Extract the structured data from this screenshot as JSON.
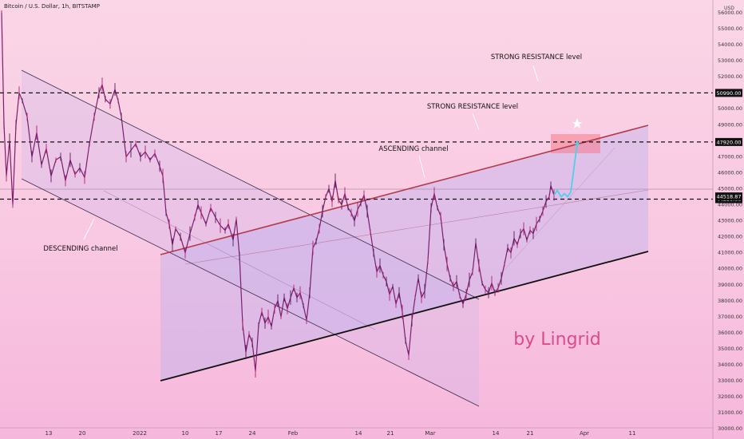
{
  "header": {
    "title": "Bitcoin / U.S. Dollar, 1h, BITSTAMP",
    "currency": "USD"
  },
  "chart_data": {
    "type": "line",
    "title": "Bitcoin / U.S. Dollar, 1h, BITSTAMP",
    "ylabel": "USD",
    "ylim": [
      29600,
      56300
    ],
    "y_ticks": [
      30000,
      31000,
      32000,
      33000,
      34000,
      35000,
      36000,
      37000,
      38000,
      39000,
      40000,
      41000,
      42000,
      43000,
      44000,
      45000,
      46000,
      47000,
      48000,
      49000,
      50000,
      51000,
      52000,
      53000,
      54000,
      55000,
      56000
    ],
    "x_tick_labels": [
      {
        "label": "13",
        "x": 61
      },
      {
        "label": "20",
        "x": 103
      },
      {
        "label": "2022",
        "x": 175
      },
      {
        "label": "10",
        "x": 232
      },
      {
        "label": "17",
        "x": 274
      },
      {
        "label": "24",
        "x": 316
      },
      {
        "label": "Feb",
        "x": 367
      },
      {
        "label": "14",
        "x": 449
      },
      {
        "label": "21",
        "x": 489
      },
      {
        "label": "Mar",
        "x": 539
      },
      {
        "label": "14",
        "x": 621
      },
      {
        "label": "21",
        "x": 664
      },
      {
        "label": "Apr",
        "x": 732
      },
      {
        "label": "11",
        "x": 792
      }
    ],
    "price_series": {
      "name": "BTCUSD",
      "points": [
        [
          2,
          56000
        ],
        [
          5,
          49000
        ],
        [
          8,
          45800
        ],
        [
          12,
          48000
        ],
        [
          16,
          44000
        ],
        [
          20,
          49000
        ],
        [
          24,
          51000
        ],
        [
          28,
          50500
        ],
        [
          34,
          49500
        ],
        [
          40,
          47000
        ],
        [
          46,
          48500
        ],
        [
          52,
          46500
        ],
        [
          58,
          47500
        ],
        [
          64,
          45800
        ],
        [
          70,
          46800
        ],
        [
          76,
          47000
        ],
        [
          82,
          45500
        ],
        [
          88,
          46800
        ],
        [
          94,
          45900
        ],
        [
          100,
          46300
        ],
        [
          106,
          45700
        ],
        [
          112,
          47800
        ],
        [
          118,
          49500
        ],
        [
          124,
          51000
        ],
        [
          128,
          51500
        ],
        [
          132,
          50600
        ],
        [
          138,
          50300
        ],
        [
          144,
          51200
        ],
        [
          148,
          50500
        ],
        [
          152,
          49500
        ],
        [
          158,
          47000
        ],
        [
          164,
          47400
        ],
        [
          170,
          47800
        ],
        [
          176,
          47000
        ],
        [
          182,
          47300
        ],
        [
          188,
          46800
        ],
        [
          194,
          47200
        ],
        [
          200,
          46400
        ],
        [
          204,
          45800
        ],
        [
          208,
          43500
        ],
        [
          212,
          42800
        ],
        [
          216,
          41500
        ],
        [
          220,
          42500
        ],
        [
          226,
          42000
        ],
        [
          232,
          41000
        ],
        [
          238,
          42200
        ],
        [
          244,
          43200
        ],
        [
          248,
          44000
        ],
        [
          252,
          43500
        ],
        [
          258,
          42800
        ],
        [
          264,
          43800
        ],
        [
          270,
          43200
        ],
        [
          276,
          42700
        ],
        [
          282,
          42400
        ],
        [
          286,
          42800
        ],
        [
          292,
          41800
        ],
        [
          296,
          43100
        ],
        [
          300,
          40800
        ],
        [
          304,
          36500
        ],
        [
          308,
          34800
        ],
        [
          312,
          35900
        ],
        [
          316,
          35400
        ],
        [
          320,
          33600
        ],
        [
          324,
          36500
        ],
        [
          328,
          37300
        ],
        [
          332,
          36600
        ],
        [
          336,
          37000
        ],
        [
          340,
          36400
        ],
        [
          344,
          37500
        ],
        [
          348,
          38000
        ],
        [
          352,
          37000
        ],
        [
          356,
          38200
        ],
        [
          360,
          37500
        ],
        [
          364,
          38200
        ],
        [
          368,
          38800
        ],
        [
          372,
          38200
        ],
        [
          376,
          38500
        ],
        [
          380,
          37700
        ],
        [
          384,
          36800
        ],
        [
          388,
          38500
        ],
        [
          392,
          41300
        ],
        [
          396,
          41700
        ],
        [
          400,
          42500
        ],
        [
          404,
          43600
        ],
        [
          408,
          44500
        ],
        [
          412,
          45000
        ],
        [
          416,
          44200
        ],
        [
          420,
          45500
        ],
        [
          424,
          44300
        ],
        [
          428,
          44000
        ],
        [
          432,
          44700
        ],
        [
          436,
          43800
        ],
        [
          440,
          43500
        ],
        [
          444,
          43000
        ],
        [
          448,
          43700
        ],
        [
          452,
          44100
        ],
        [
          456,
          44600
        ],
        [
          460,
          43600
        ],
        [
          464,
          42300
        ],
        [
          468,
          41000
        ],
        [
          472,
          39800
        ],
        [
          476,
          40200
        ],
        [
          480,
          39600
        ],
        [
          484,
          39200
        ],
        [
          488,
          38400
        ],
        [
          492,
          38900
        ],
        [
          496,
          37800
        ],
        [
          500,
          38500
        ],
        [
          504,
          37300
        ],
        [
          508,
          35500
        ],
        [
          512,
          34600
        ],
        [
          516,
          36800
        ],
        [
          520,
          38200
        ],
        [
          524,
          39400
        ],
        [
          528,
          38200
        ],
        [
          532,
          38600
        ],
        [
          536,
          40500
        ],
        [
          540,
          43800
        ],
        [
          544,
          44700
        ],
        [
          548,
          43800
        ],
        [
          552,
          43300
        ],
        [
          556,
          41500
        ],
        [
          560,
          40300
        ],
        [
          564,
          39400
        ],
        [
          568,
          38900
        ],
        [
          572,
          39200
        ],
        [
          576,
          38300
        ],
        [
          580,
          37800
        ],
        [
          584,
          38400
        ],
        [
          588,
          39300
        ],
        [
          592,
          39800
        ],
        [
          596,
          41600
        ],
        [
          600,
          40200
        ],
        [
          604,
          39100
        ],
        [
          608,
          38700
        ],
        [
          612,
          38500
        ],
        [
          616,
          39100
        ],
        [
          620,
          38500
        ],
        [
          624,
          38800
        ],
        [
          628,
          39400
        ],
        [
          632,
          40300
        ],
        [
          636,
          41300
        ],
        [
          640,
          41000
        ],
        [
          644,
          41900
        ],
        [
          648,
          41500
        ],
        [
          652,
          42200
        ],
        [
          656,
          42500
        ],
        [
          660,
          41800
        ],
        [
          664,
          42400
        ],
        [
          668,
          42200
        ],
        [
          672,
          42800
        ],
        [
          676,
          43100
        ],
        [
          680,
          43600
        ],
        [
          684,
          44200
        ],
        [
          688,
          44500
        ],
        [
          690,
          45200
        ],
        [
          694,
          44600
        ]
      ]
    },
    "projection": {
      "name": "projection",
      "color": "#4fd0e8",
      "points": [
        [
          694,
          44600
        ],
        [
          698,
          44900
        ],
        [
          703,
          44500
        ],
        [
          707,
          44700
        ],
        [
          711,
          44500
        ],
        [
          715,
          44800
        ],
        [
          719,
          46300
        ],
        [
          723,
          47800
        ]
      ]
    },
    "horizontal_levels": [
      {
        "label": "50990.00",
        "value": 50990
      },
      {
        "label": "47920.00",
        "value": 47920
      },
      {
        "label": "44350.00",
        "value": 44350
      }
    ],
    "current_price": {
      "label": "44518.87",
      "value": 44518.87
    },
    "annotations": [
      {
        "text": "STRONG RESISTANCE level",
        "x": 672,
        "y": 71
      },
      {
        "text": "STRONG RESISTANCE level",
        "x": 592,
        "y": 133
      },
      {
        "text": "ASCENDING channel",
        "x": 518,
        "y": 186
      },
      {
        "text": "DESCENDING channel",
        "x": 101,
        "y": 311
      }
    ],
    "watermark": "by Lingrid",
    "colors": {
      "accent": "#d94d8d",
      "resistance_line": "#b53a4a",
      "candles": "#7a1f6e"
    }
  }
}
